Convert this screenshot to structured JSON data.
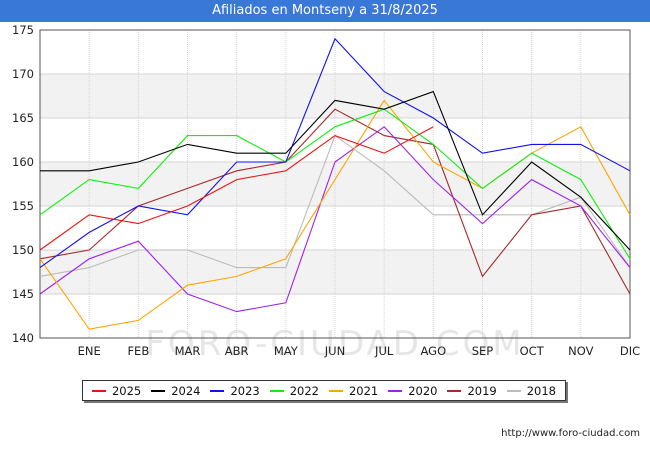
{
  "header": {
    "title": "Afiliados en Montseny a 31/8/2025"
  },
  "source": "http://www.foro-ciudad.com",
  "watermark": "FORO-CIUDAD.COM",
  "chart_data": {
    "type": "line",
    "categories": [
      "",
      "ENE",
      "FEB",
      "MAR",
      "ABR",
      "MAY",
      "JUN",
      "JUL",
      "AGO",
      "SEP",
      "OCT",
      "NOV",
      "DIC"
    ],
    "ylim": [
      140,
      175
    ],
    "yticks": [
      140,
      145,
      150,
      155,
      160,
      165,
      170,
      175
    ],
    "grid": true,
    "legend_position": "bottom",
    "series": [
      {
        "name": "2025",
        "color": "#ee1111",
        "values": [
          150,
          154,
          153,
          155,
          158,
          159,
          163,
          161,
          164,
          null,
          null,
          null,
          null
        ]
      },
      {
        "name": "2024",
        "color": "#000000",
        "values": [
          159,
          159,
          160,
          162,
          161,
          161,
          167,
          166,
          168,
          154,
          160,
          156,
          150
        ]
      },
      {
        "name": "2023",
        "color": "#1111ee",
        "values": [
          148,
          152,
          155,
          154,
          160,
          160,
          174,
          168,
          165,
          161,
          162,
          162,
          159
        ]
      },
      {
        "name": "2022",
        "color": "#11ee11",
        "values": [
          154,
          158,
          157,
          163,
          163,
          160,
          164,
          166,
          162,
          157,
          161,
          158,
          149
        ]
      },
      {
        "name": "2021",
        "color": "#ffa500",
        "values": [
          149,
          141,
          142,
          146,
          147,
          149,
          158,
          167,
          160,
          157,
          161,
          164,
          154
        ]
      },
      {
        "name": "2020",
        "color": "#a020f0",
        "values": [
          145,
          149,
          151,
          145,
          143,
          144,
          160,
          164,
          158,
          153,
          158,
          155,
          148
        ]
      },
      {
        "name": "2019",
        "color": "#a52a2a",
        "values": [
          149,
          150,
          155,
          157,
          159,
          160,
          166,
          163,
          162,
          147,
          154,
          155,
          145
        ]
      },
      {
        "name": "2018",
        "color": "#bbbbbb",
        "values": [
          147,
          148,
          150,
          150,
          148,
          148,
          163,
          159,
          154,
          154,
          154,
          156,
          148
        ]
      }
    ]
  }
}
